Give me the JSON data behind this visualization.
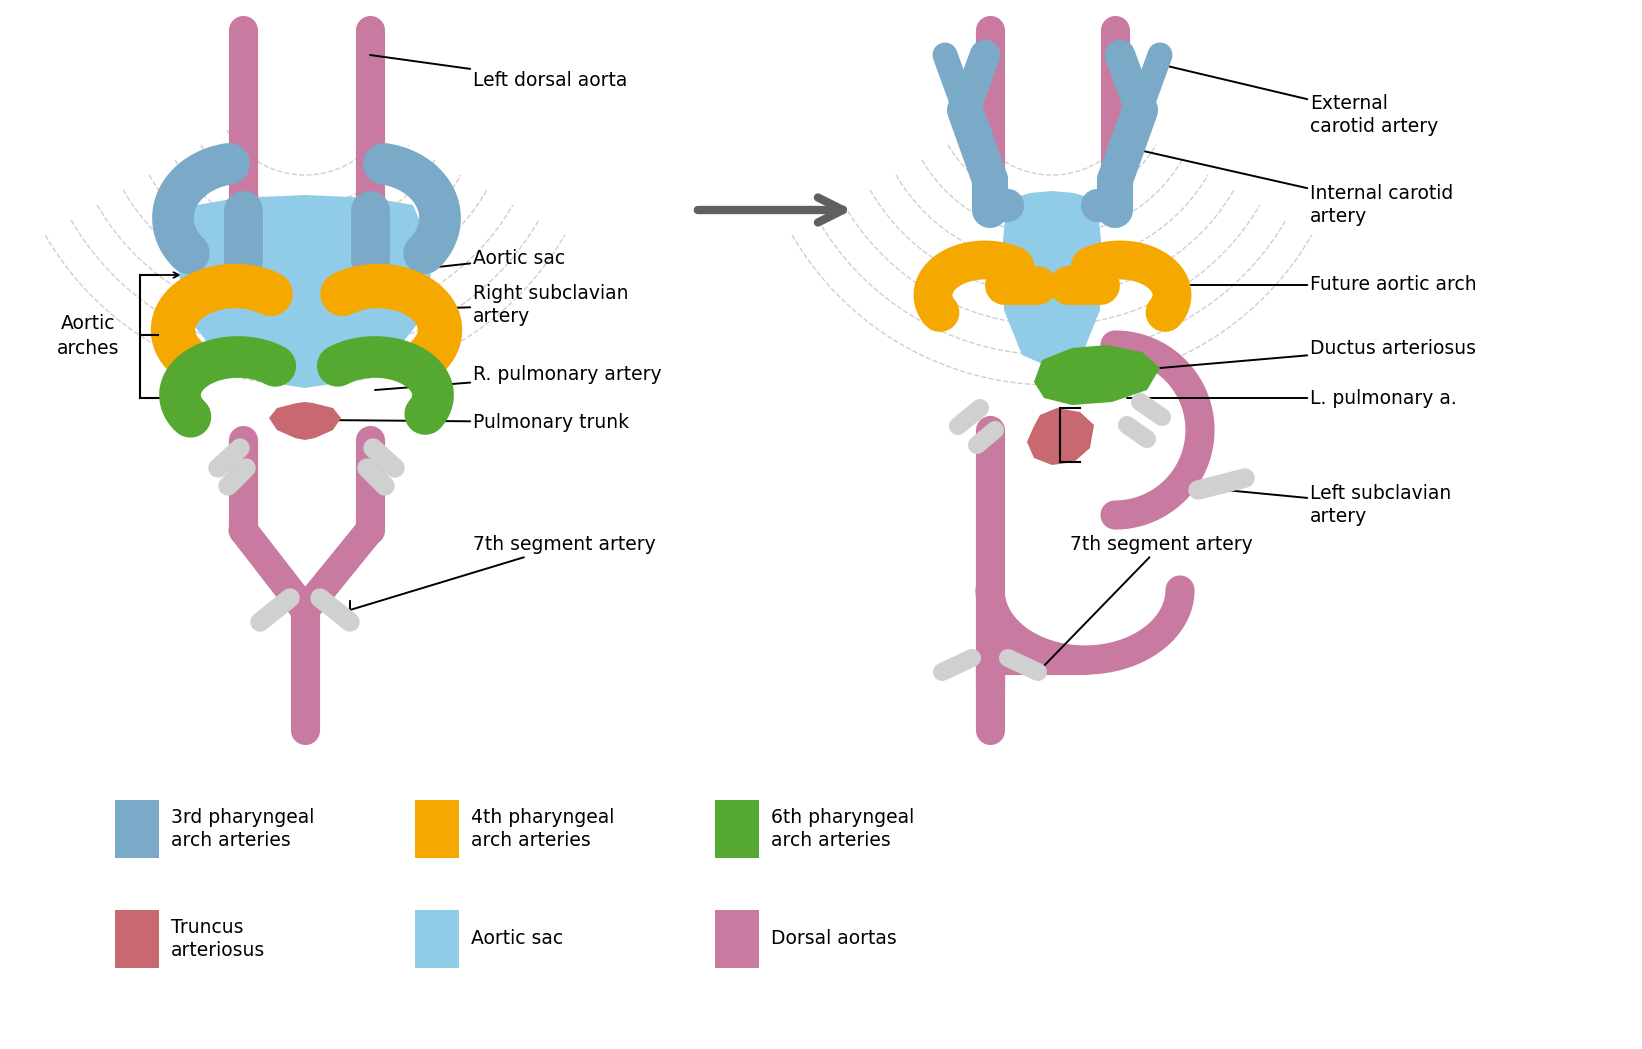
{
  "bg": "#ffffff",
  "pink": "#C87AA0",
  "blue3": "#7AAAC8",
  "sacblue": "#90CCE8",
  "yellow": "#F5A800",
  "green": "#55A830",
  "red": "#C86870",
  "white": "#D0D0D0",
  "gray": "#606060",
  "dash": "#BBBBBB",
  "label_fs": 13.5,
  "legend_fs": 13.5,
  "legend_row1": [
    {
      "label": "3rd pharyngeal\narch arteries",
      "color": "#7AAAC8"
    },
    {
      "label": "4th pharyngeal\narch arteries",
      "color": "#F5A800"
    },
    {
      "label": "6th pharyngeal\narch arteries",
      "color": "#55A830"
    }
  ],
  "legend_row2": [
    {
      "label": "Truncus\narteriosus",
      "color": "#C86870"
    },
    {
      "label": "Aortic sac",
      "color": "#90CCE8"
    },
    {
      "label": "Dorsal aortas",
      "color": "#C87AA0"
    }
  ]
}
